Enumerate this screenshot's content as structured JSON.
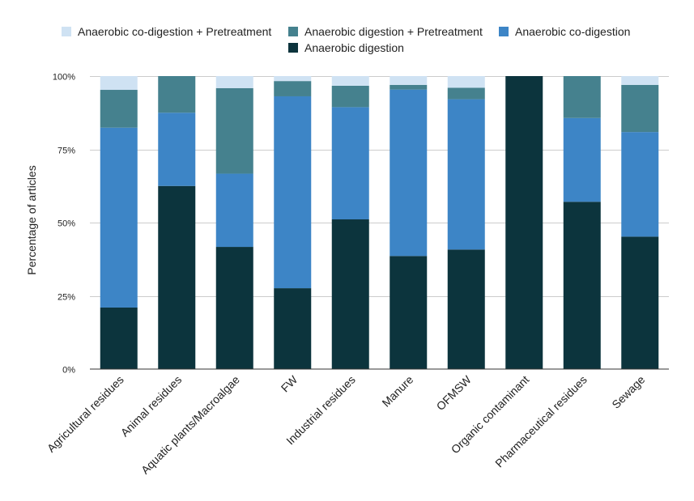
{
  "chart_data": {
    "type": "bar",
    "stacked": true,
    "normalized": true,
    "title": "",
    "xlabel": "",
    "ylabel": "Percentage of articles",
    "ylim": [
      0,
      100
    ],
    "yticks": [
      0,
      25,
      50,
      75,
      100
    ],
    "ytick_labels": [
      "0%",
      "25%",
      "50%",
      "75%",
      "100%"
    ],
    "legend_position": "top",
    "categories": [
      "Agricultural residues",
      "Animal residues",
      "Aquatic plants/Macroalgae",
      "FW",
      "Industrial residues",
      "Manure",
      "OFMSW",
      "Organic contaminant",
      "Pharmaceutical residues",
      "Sewage"
    ],
    "series": [
      {
        "name": "Anaerobic digestion",
        "color": "#0c343d",
        "values": [
          21,
          62.5,
          41.7,
          27.6,
          51.1,
          38.6,
          40.8,
          100,
          57.1,
          45.2
        ]
      },
      {
        "name": "Anaerobic co-digestion",
        "color": "#3d85c6",
        "values": [
          61.4,
          25,
          25,
          65.5,
          38.3,
          56.8,
          51.3,
          0,
          28.6,
          35.7
        ]
      },
      {
        "name": "Anaerobic digestion + Pretreatment",
        "color": "#45818e",
        "values": [
          12.9,
          12.5,
          29.2,
          5.2,
          7.3,
          1.6,
          3.9,
          0,
          14.3,
          16.1
        ]
      },
      {
        "name": "Anaerobic co-digestion + Pretreatment",
        "color": "#cfe2f3",
        "values": [
          4.7,
          0,
          4.1,
          1.7,
          3.3,
          3.0,
          4.0,
          0,
          0,
          3.0
        ]
      }
    ],
    "legend_order": [
      "Anaerobic co-digestion + Pretreatment",
      "Anaerobic digestion + Pretreatment",
      "Anaerobic co-digestion",
      "Anaerobic digestion"
    ]
  }
}
